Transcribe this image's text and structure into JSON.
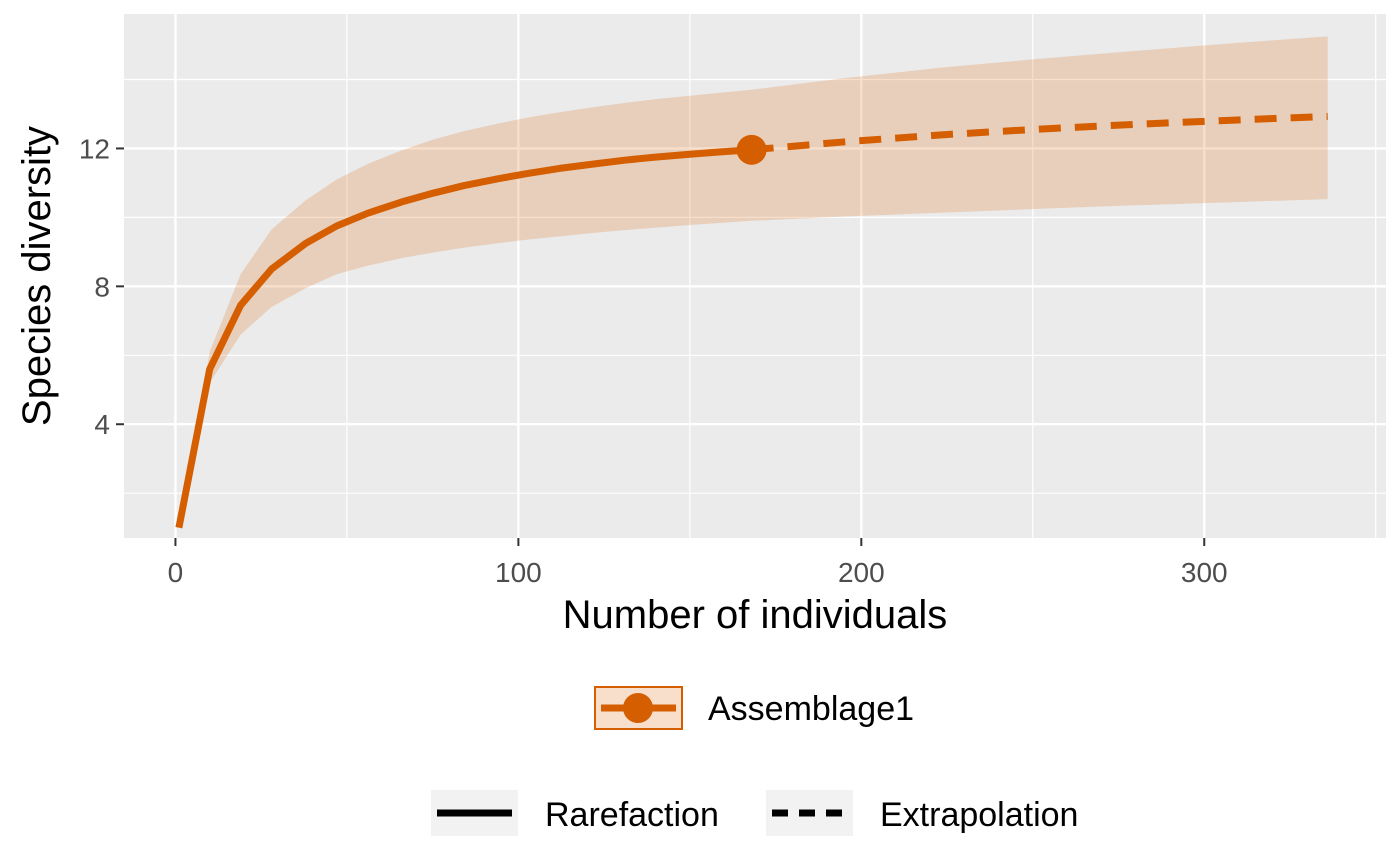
{
  "chart_data": {
    "type": "line",
    "title": "",
    "xlabel": "Number of individuals",
    "ylabel": "Species diversity",
    "xlim": [
      -15,
      353
    ],
    "ylim": [
      0.7,
      15.9
    ],
    "x_ticks": [
      0,
      100,
      200,
      300
    ],
    "y_ticks": [
      4,
      8,
      12
    ],
    "grid": true,
    "colors": {
      "series": "#D55E00",
      "ribbon": "#D55E00",
      "panel": "#EBEBEB",
      "grid": "#FFFFFF"
    },
    "reference_point": {
      "x": 168,
      "y": 11.96
    },
    "rarefaction": {
      "x": [
        1,
        10,
        19,
        28,
        38,
        47,
        56,
        66,
        75,
        84,
        94,
        103,
        112,
        122,
        131,
        140,
        150,
        159,
        168
      ],
      "y": [
        1.0,
        5.6,
        7.45,
        8.5,
        9.25,
        9.75,
        10.12,
        10.45,
        10.7,
        10.92,
        11.12,
        11.28,
        11.42,
        11.55,
        11.66,
        11.75,
        11.83,
        11.9,
        11.96
      ],
      "lower": [
        1.0,
        5.2,
        6.6,
        7.4,
        7.95,
        8.35,
        8.6,
        8.82,
        8.98,
        9.12,
        9.25,
        9.36,
        9.45,
        9.55,
        9.63,
        9.7,
        9.78,
        9.84,
        9.9
      ],
      "upper": [
        1.0,
        6.1,
        8.35,
        9.65,
        10.5,
        11.1,
        11.55,
        11.95,
        12.25,
        12.5,
        12.72,
        12.9,
        13.05,
        13.2,
        13.32,
        13.43,
        13.53,
        13.62,
        13.7
      ]
    },
    "extrapolation": {
      "x": [
        168,
        196,
        224,
        252,
        280,
        308,
        336
      ],
      "y": [
        11.96,
        12.2,
        12.4,
        12.56,
        12.7,
        12.82,
        12.93
      ],
      "lower": [
        9.9,
        10.03,
        10.14,
        10.25,
        10.35,
        10.44,
        10.53
      ],
      "upper": [
        13.7,
        14.05,
        14.35,
        14.6,
        14.83,
        15.05,
        15.25
      ]
    },
    "legend": {
      "placement": "bottom",
      "assemblage": "Assemblage1",
      "line_types": [
        "Rarefaction",
        "Extrapolation"
      ]
    }
  }
}
